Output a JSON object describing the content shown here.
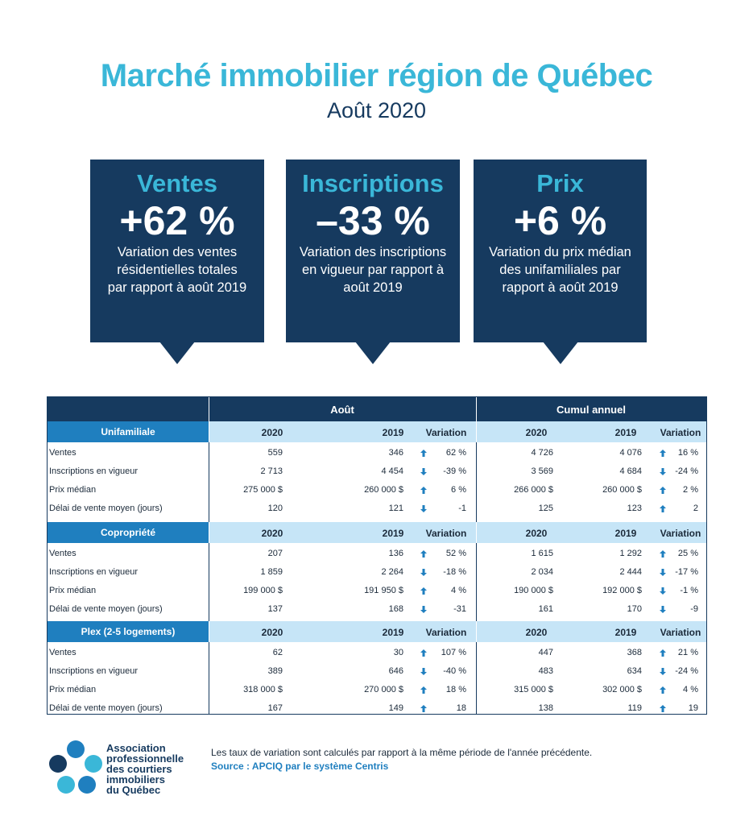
{
  "header": {
    "title": "Marché immobilier région de Québec",
    "subtitle": "Août 2020"
  },
  "highlights": [
    {
      "label": "Ventes",
      "value": "+62 %",
      "description": [
        "Variation des ventes",
        "résidentielles totales",
        "par rapport à août 2019"
      ]
    },
    {
      "label": "Inscriptions",
      "value": "–33 %",
      "description": [
        "Variation des inscriptions",
        "en vigueur par rapport à",
        "août 2019"
      ]
    },
    {
      "label": "Prix",
      "value": "+6 %",
      "description": [
        "Variation du prix médian",
        "des unifamiliales par",
        "rapport à août 2019"
      ]
    }
  ],
  "table": {
    "group_headers": [
      "Août",
      "Cumul annuel"
    ],
    "sections": [
      {
        "name": "Unifamiliale",
        "columns": [
          "2020",
          "2019",
          "Variation",
          "2020",
          "2019",
          "Variation"
        ],
        "rows": [
          {
            "label": "Ventes",
            "cells": [
              "559",
              "346",
              {
                "dir": "up",
                "text": "62 %"
              },
              "4 726",
              "4 076",
              {
                "dir": "up",
                "text": "16 %"
              }
            ]
          },
          {
            "label": "Inscriptions en vigueur",
            "cells": [
              "2 713",
              "4 454",
              {
                "dir": "down",
                "text": "-39 %"
              },
              "3 569",
              "4 684",
              {
                "dir": "down",
                "text": "-24 %"
              }
            ]
          },
          {
            "label": "Prix médian",
            "cells": [
              "275 000 $",
              "260 000 $",
              {
                "dir": "up",
                "text": "6 %"
              },
              "266 000 $",
              "260 000 $",
              {
                "dir": "up",
                "text": "2 %"
              }
            ]
          },
          {
            "label": "Délai de vente moyen (jours)",
            "cells": [
              "120",
              "121",
              {
                "dir": "down",
                "text": "-1"
              },
              "125",
              "123",
              {
                "dir": "up",
                "text": "2"
              }
            ]
          }
        ]
      },
      {
        "name": "Copropriété",
        "columns": [
          "2020",
          "2019",
          "Variation",
          "2020",
          "2019",
          "Variation"
        ],
        "rows": [
          {
            "label": "Ventes",
            "cells": [
              "207",
              "136",
              {
                "dir": "up",
                "text": "52 %"
              },
              "1 615",
              "1 292",
              {
                "dir": "up",
                "text": "25 %"
              }
            ]
          },
          {
            "label": "Inscriptions en vigueur",
            "cells": [
              "1 859",
              "2 264",
              {
                "dir": "down",
                "text": "-18 %"
              },
              "2 034",
              "2 444",
              {
                "dir": "down",
                "text": "-17 %"
              }
            ]
          },
          {
            "label": "Prix médian",
            "cells": [
              "199 000 $",
              "191 950 $",
              {
                "dir": "up",
                "text": "4 %"
              },
              "190 000 $",
              "192 000 $",
              {
                "dir": "down",
                "text": "-1 %"
              }
            ]
          },
          {
            "label": "Délai de vente moyen (jours)",
            "cells": [
              "137",
              "168",
              {
                "dir": "down",
                "text": "-31"
              },
              "161",
              "170",
              {
                "dir": "down",
                "text": "-9"
              }
            ]
          }
        ]
      },
      {
        "name": "Plex (2-5 logements)",
        "columns": [
          "2020",
          "2019",
          "Variation",
          "2020",
          "2019",
          "Variation"
        ],
        "rows": [
          {
            "label": "Ventes",
            "cells": [
              "62",
              "30",
              {
                "dir": "up",
                "text": "107 %"
              },
              "447",
              "368",
              {
                "dir": "up",
                "text": "21 %"
              }
            ]
          },
          {
            "label": "Inscriptions en vigueur",
            "cells": [
              "389",
              "646",
              {
                "dir": "down",
                "text": "-40 %"
              },
              "483",
              "634",
              {
                "dir": "down",
                "text": "-24 %"
              }
            ]
          },
          {
            "label": "Prix médian",
            "cells": [
              "318 000 $",
              "270 000 $",
              {
                "dir": "up",
                "text": "18 %"
              },
              "315 000 $",
              "302 000 $",
              {
                "dir": "up",
                "text": "4 %"
              }
            ]
          },
          {
            "label": "Délai de vente moyen (jours)",
            "cells": [
              "167",
              "149",
              {
                "dir": "up",
                "text": "18"
              },
              "138",
              "119",
              {
                "dir": "up",
                "text": "19"
              }
            ]
          }
        ]
      }
    ]
  },
  "footer": {
    "logo_lines": [
      "Association",
      "professionnelle",
      "des courtiers",
      "immobiliers",
      "du Québec"
    ],
    "note": "Les taux de variation sont calculés par rapport à la même période de l'année précédente.",
    "source": "Source : APCIQ par le système Centris"
  }
}
